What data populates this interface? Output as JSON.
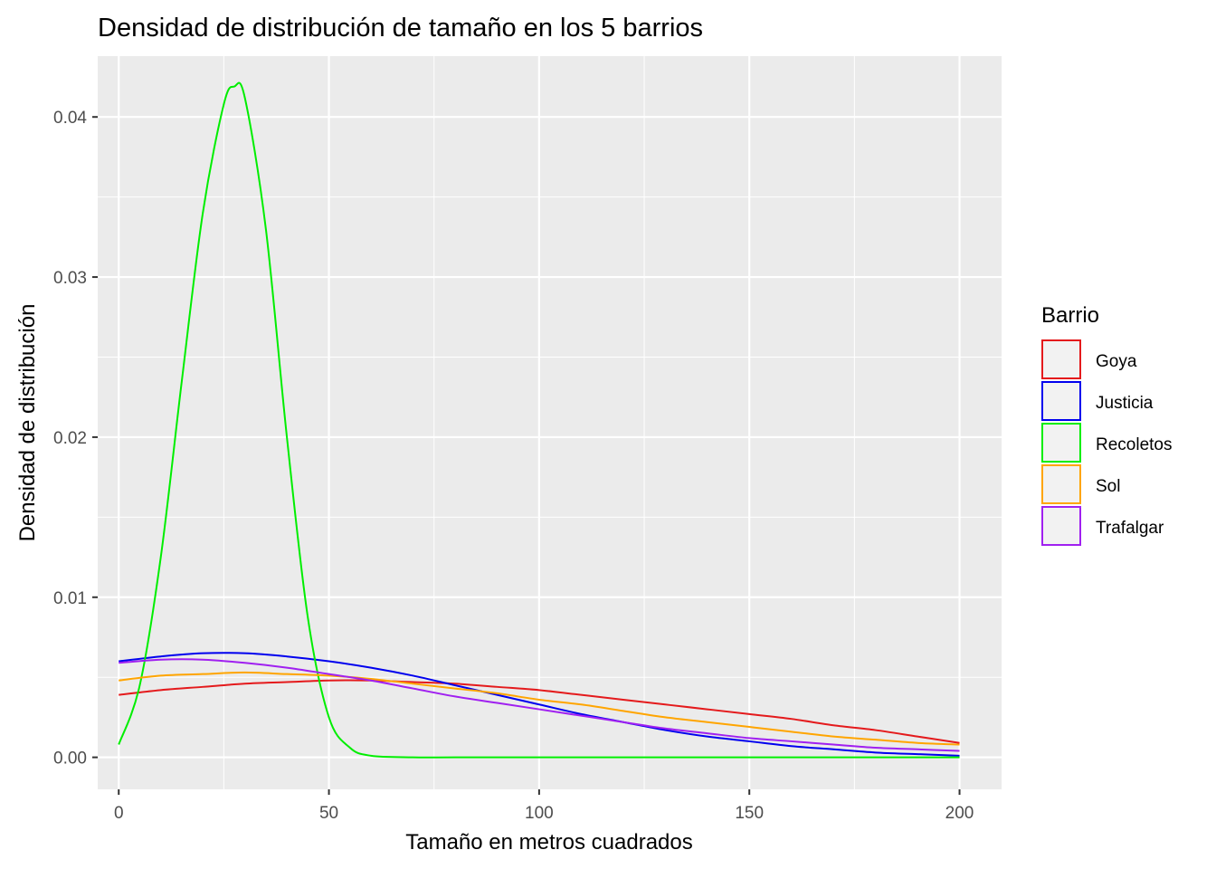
{
  "chart_data": {
    "type": "line",
    "title": "Densidad de distribución de tamaño en los 5 barrios",
    "xlabel": "Tamaño en metros cuadrados",
    "ylabel": "Densidad de distribución",
    "xlim": [
      -5,
      210
    ],
    "ylim": [
      -0.002,
      0.0438
    ],
    "x_ticks": [
      0,
      50,
      100,
      150,
      200
    ],
    "x_tick_labels": [
      "0",
      "50",
      "100",
      "150",
      "200"
    ],
    "y_ticks": [
      0,
      0.01,
      0.02,
      0.03,
      0.04
    ],
    "y_tick_labels": [
      "0.00",
      "0.01",
      "0.02",
      "0.03",
      "0.04"
    ],
    "grid": true,
    "panel_background": "#ebebeb",
    "legend": {
      "title": "Barrio",
      "position": "right"
    },
    "series": [
      {
        "name": "Goya",
        "color": "#e41a1c",
        "x": [
          0,
          10,
          20,
          30,
          40,
          50,
          60,
          70,
          80,
          90,
          100,
          110,
          120,
          130,
          140,
          150,
          160,
          170,
          180,
          190,
          200
        ],
        "y": [
          0.0039,
          0.0042,
          0.0044,
          0.0046,
          0.0047,
          0.0048,
          0.0048,
          0.0047,
          0.0046,
          0.0044,
          0.0042,
          0.0039,
          0.0036,
          0.0033,
          0.003,
          0.0027,
          0.0024,
          0.002,
          0.0017,
          0.0013,
          0.0009
        ]
      },
      {
        "name": "Justicia",
        "color": "#0000ee",
        "x": [
          0,
          10,
          20,
          30,
          40,
          50,
          60,
          70,
          80,
          90,
          100,
          110,
          120,
          130,
          140,
          150,
          160,
          170,
          180,
          190,
          200
        ],
        "y": [
          0.006,
          0.0063,
          0.0065,
          0.0065,
          0.0063,
          0.006,
          0.0056,
          0.0051,
          0.0045,
          0.0039,
          0.0033,
          0.0027,
          0.0022,
          0.0017,
          0.0013,
          0.001,
          0.0007,
          0.0005,
          0.0003,
          0.0002,
          0.0001
        ]
      },
      {
        "name": "Recoletos",
        "color": "#00ee00",
        "x": [
          0,
          5,
          10,
          15,
          20,
          25,
          27.5,
          30,
          35,
          40,
          45,
          50,
          55,
          60,
          70,
          80,
          100,
          150,
          200
        ],
        "y": [
          0.0008,
          0.0045,
          0.0125,
          0.0235,
          0.034,
          0.0408,
          0.0419,
          0.0412,
          0.033,
          0.02,
          0.0087,
          0.0025,
          0.0006,
          0.0001,
          0.0,
          0.0,
          0.0,
          0.0,
          0.0
        ]
      },
      {
        "name": "Sol",
        "color": "#ffa500",
        "x": [
          0,
          10,
          20,
          30,
          40,
          50,
          60,
          70,
          80,
          90,
          100,
          110,
          120,
          130,
          140,
          150,
          160,
          170,
          180,
          190,
          200
        ],
        "y": [
          0.0048,
          0.0051,
          0.0052,
          0.0053,
          0.0052,
          0.0051,
          0.0049,
          0.0046,
          0.0043,
          0.004,
          0.0036,
          0.0033,
          0.0029,
          0.0025,
          0.0022,
          0.0019,
          0.0016,
          0.0013,
          0.0011,
          0.0009,
          0.0008
        ]
      },
      {
        "name": "Trafalgar",
        "color": "#a020f0",
        "x": [
          0,
          10,
          20,
          30,
          40,
          50,
          60,
          70,
          80,
          90,
          100,
          110,
          120,
          130,
          140,
          150,
          160,
          170,
          180,
          190,
          200
        ],
        "y": [
          0.0059,
          0.0061,
          0.0061,
          0.0059,
          0.0056,
          0.0052,
          0.0048,
          0.0043,
          0.0038,
          0.0034,
          0.003,
          0.0026,
          0.0022,
          0.0018,
          0.0015,
          0.0012,
          0.001,
          0.0008,
          0.0006,
          0.0005,
          0.0004
        ]
      }
    ]
  }
}
